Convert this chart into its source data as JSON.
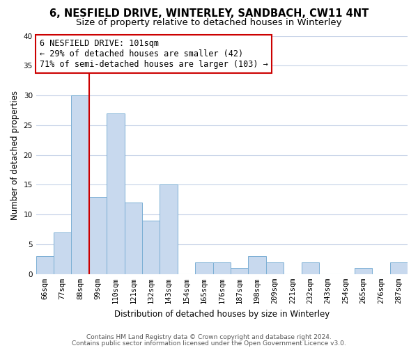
{
  "title": "6, NESFIELD DRIVE, WINTERLEY, SANDBACH, CW11 4NT",
  "subtitle": "Size of property relative to detached houses in Winterley",
  "xlabel": "Distribution of detached houses by size in Winterley",
  "ylabel": "Number of detached properties",
  "bar_labels": [
    "66sqm",
    "77sqm",
    "88sqm",
    "99sqm",
    "110sqm",
    "121sqm",
    "132sqm",
    "143sqm",
    "154sqm",
    "165sqm",
    "176sqm",
    "187sqm",
    "198sqm",
    "209sqm",
    "221sqm",
    "232sqm",
    "243sqm",
    "254sqm",
    "265sqm",
    "276sqm",
    "287sqm"
  ],
  "bar_values": [
    3,
    7,
    30,
    13,
    27,
    12,
    9,
    15,
    0,
    2,
    2,
    1,
    3,
    2,
    0,
    2,
    0,
    0,
    1,
    0,
    2
  ],
  "bar_color": "#c8d9ee",
  "bar_edge_color": "#7bafd4",
  "vline_x": 2.5,
  "vline_color": "#cc0000",
  "annotation_line1": "6 NESFIELD DRIVE: 101sqm",
  "annotation_line2": "← 29% of detached houses are smaller (42)",
  "annotation_line3": "71% of semi-detached houses are larger (103) →",
  "annotation_box_color": "#ffffff",
  "annotation_box_edge_color": "#cc0000",
  "ylim": [
    0,
    40
  ],
  "yticks": [
    0,
    5,
    10,
    15,
    20,
    25,
    30,
    35,
    40
  ],
  "footer1": "Contains HM Land Registry data © Crown copyright and database right 2024.",
  "footer2": "Contains public sector information licensed under the Open Government Licence v3.0.",
  "bg_color": "#ffffff",
  "grid_color": "#c8d4e8",
  "title_fontsize": 10.5,
  "subtitle_fontsize": 9.5,
  "axis_label_fontsize": 8.5,
  "annot_fontsize": 8.5,
  "tick_fontsize": 7.5,
  "footer_fontsize": 6.5
}
